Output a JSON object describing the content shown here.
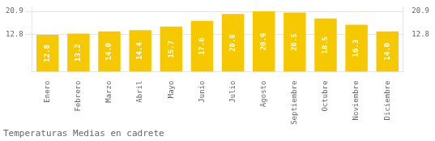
{
  "chart_data": {
    "type": "bar",
    "title": "Temperaturas Medias en cadrete",
    "categories": [
      "Enero",
      "Febrero",
      "Marzo",
      "Abril",
      "Mayo",
      "Junio",
      "Julio",
      "Agosto",
      "Septiembre",
      "Octubre",
      "Noviembre",
      "Diciembre"
    ],
    "values": [
      12.8,
      13.2,
      14.0,
      14.4,
      15.7,
      17.6,
      20.0,
      20.9,
      20.5,
      18.5,
      16.3,
      14.0
    ],
    "value_labels": [
      "12.8",
      "13.2",
      "14.0",
      "14.4",
      "15.7",
      "17.6",
      "20.0",
      "20.9",
      "20.5",
      "18.5",
      "16.3",
      "14.0"
    ],
    "color": "#F5C800",
    "ylim": [
      0,
      22.5
    ],
    "yticks": [
      12.8,
      20.9
    ],
    "y2lim": [
      0,
      22.5
    ],
    "y2ticks": [
      12.8,
      20.9
    ],
    "grid": true,
    "data_labels": true
  }
}
